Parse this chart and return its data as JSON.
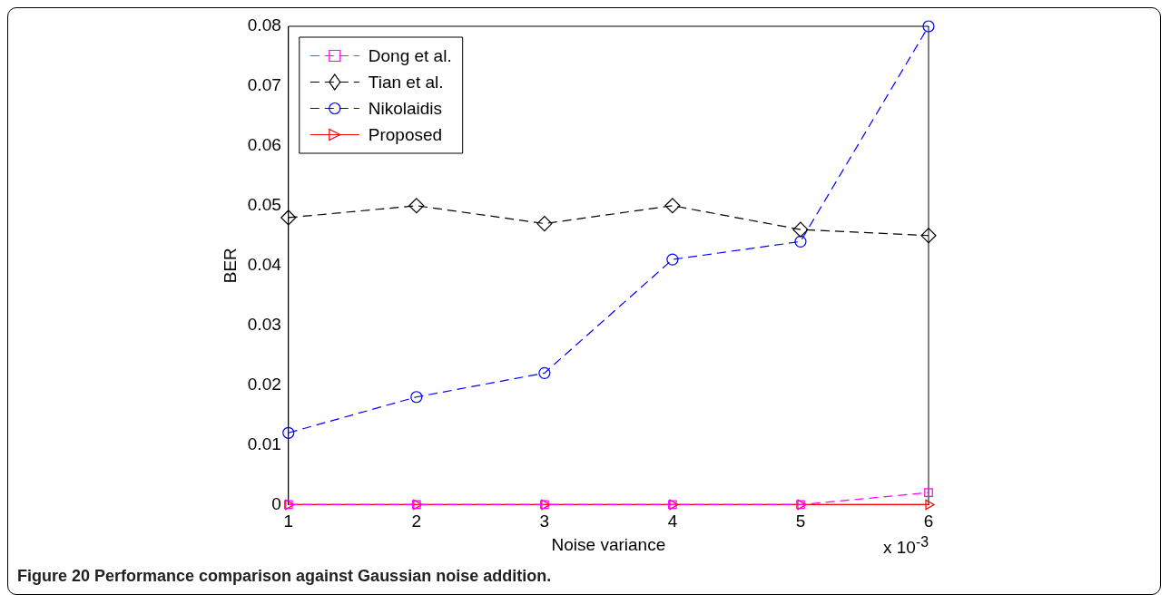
{
  "chart_data": {
    "type": "line",
    "xlabel": "Noise variance",
    "ylabel": "BER",
    "x": [
      1,
      2,
      3,
      4,
      5,
      6
    ],
    "xlim": [
      1,
      6
    ],
    "xticks": [
      1,
      2,
      3,
      4,
      5,
      6
    ],
    "ylim": [
      0,
      0.08
    ],
    "yticks": [
      0,
      0.01,
      0.02,
      0.03,
      0.04,
      0.05,
      0.06,
      0.07,
      0.08
    ],
    "grid": false,
    "legend": "top left",
    "series": [
      {
        "name": "Dong et al.",
        "color": "#ff00ff",
        "values": [
          0,
          0,
          0,
          0,
          0,
          0.002
        ],
        "marker": "square",
        "line_style": "dashed"
      },
      {
        "name": "Tian et al.",
        "color": "#000000",
        "values": [
          0.048,
          0.05,
          0.047,
          0.05,
          0.046,
          0.045
        ],
        "marker": "diamond",
        "line_style": "dashed"
      },
      {
        "name": "Nikolaidis",
        "color": "#0000ff",
        "values": [
          0.012,
          0.018,
          0.022,
          0.041,
          0.044,
          0.08
        ],
        "marker": "circle",
        "line_style": "dashed"
      },
      {
        "name": "Proposed",
        "color": "#ff0000",
        "values": [
          0,
          0,
          0,
          0,
          0,
          0
        ],
        "marker": "triangle",
        "line_style": "solid"
      }
    ],
    "annotations": [
      "x 10$^{-3}$",
      "Figure 20 Performance comparison against Gaussian noise addition."
    ]
  }
}
